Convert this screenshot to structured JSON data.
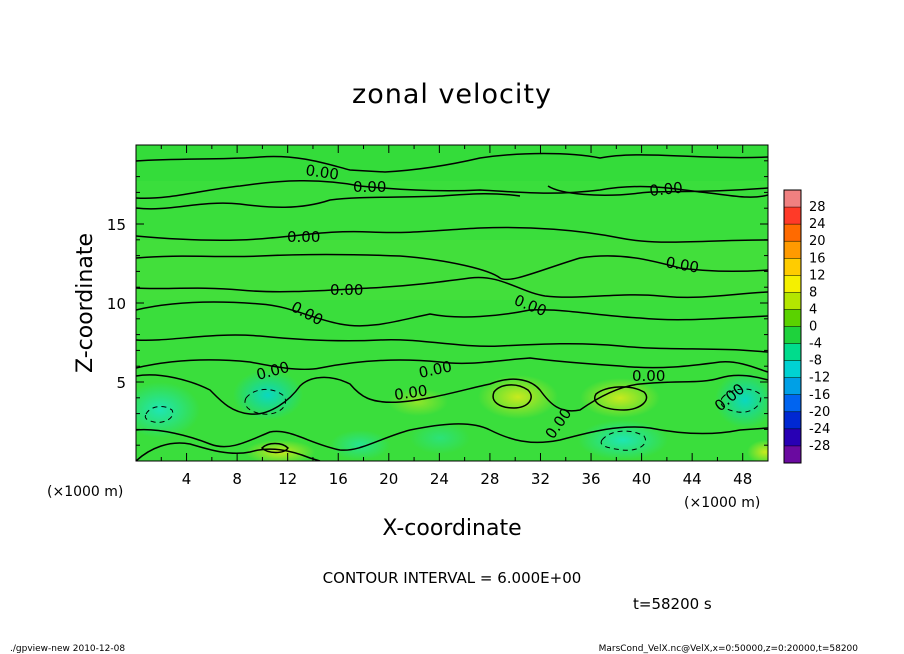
{
  "chart_data": {
    "type": "heatmap",
    "title": "zonal velocity",
    "xlabel": "X-coordinate",
    "ylabel": "Z-coordinate",
    "x_unit": "(×1000 m)",
    "y_unit": "(×1000 m)",
    "xlim": [
      0,
      50
    ],
    "ylim": [
      0,
      20
    ],
    "x_ticks": [
      4,
      8,
      12,
      16,
      20,
      24,
      28,
      32,
      36,
      40,
      44,
      48
    ],
    "y_ticks": [
      5,
      10,
      15
    ],
    "colorbar": {
      "levels": [
        28,
        24,
        20,
        16,
        12,
        8,
        4,
        0,
        -4,
        -8,
        -12,
        -16,
        -20,
        -24,
        -28
      ],
      "colors": [
        "#f08080",
        "#ff3a28",
        "#ff6a00",
        "#ff9a00",
        "#ffcc00",
        "#f5f000",
        "#b4e600",
        "#5ad200",
        "#1ed23c",
        "#00dc8c",
        "#00d2d2",
        "#00a0e6",
        "#0064f0",
        "#0028d2",
        "#2800b4",
        "#6a0aa0"
      ]
    },
    "contour_labels": [
      "0.00",
      "0.00",
      "0.00",
      "0.00",
      "0.00",
      "0.00",
      "0.00",
      "0.00",
      "0.00",
      "0.00",
      "0.00",
      "0.00",
      "0.00",
      "0.00",
      "0.00"
    ],
    "contour_interval_text": "CONTOUR INTERVAL = 6.000E+00",
    "time_text": "t=58200 s"
  },
  "footer": {
    "left": "./gpview-new  2010-12-08",
    "right": "MarsCond_VelX.nc@VelX,x=0:50000,z=0:20000,t=58200"
  }
}
